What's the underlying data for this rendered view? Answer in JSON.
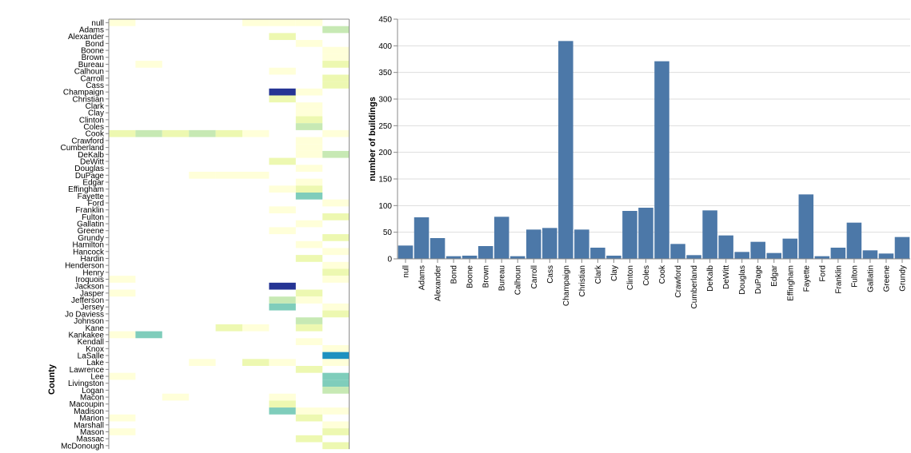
{
  "chart_data": [
    {
      "type": "heatmap",
      "ylabel": "County",
      "rows": [
        "null",
        "Adams",
        "Alexander",
        "Bond",
        "Boone",
        "Brown",
        "Bureau",
        "Calhoun",
        "Carroll",
        "Cass",
        "Champaign",
        "Christian",
        "Clark",
        "Clay",
        "Clinton",
        "Coles",
        "Cook",
        "Crawford",
        "Cumberland",
        "DeKalb",
        "DeWitt",
        "Douglas",
        "DuPage",
        "Edgar",
        "Effingham",
        "Fayette",
        "Ford",
        "Franklin",
        "Fulton",
        "Gallatin",
        "Greene",
        "Grundy",
        "Hamilton",
        "Hancock",
        "Hardin",
        "Henderson",
        "Henry",
        "Iroquois",
        "Jackson",
        "Jasper",
        "Jefferson",
        "Jersey",
        "Jo Daviess",
        "Johnson",
        "Kane",
        "Kankakee",
        "Kendall",
        "Knox",
        "LaSalle",
        "Lake",
        "Lawrence",
        "Lee",
        "Livingston",
        "Logan",
        "Macon",
        "Macoupin",
        "Madison",
        "Marion",
        "Marshall",
        "Mason",
        "Massac",
        "McDonough"
      ],
      "column_count": 9,
      "color_scale": [
        "#ffffd9",
        "#edf8b1",
        "#c7e9b4",
        "#7fcdbb",
        "#41b6c4",
        "#1d91c0",
        "#225ea8",
        "#253494"
      ],
      "cells": [
        {
          "row": "null",
          "col": 0,
          "level": 1
        },
        {
          "row": "null",
          "col": 5,
          "level": 1
        },
        {
          "row": "null",
          "col": 6,
          "level": 1
        },
        {
          "row": "null",
          "col": 7,
          "level": 1
        },
        {
          "row": "Adams",
          "col": 8,
          "level": 3
        },
        {
          "row": "Alexander",
          "col": 6,
          "level": 2
        },
        {
          "row": "Bond",
          "col": 7,
          "level": 1
        },
        {
          "row": "Boone",
          "col": 8,
          "level": 1
        },
        {
          "row": "Brown",
          "col": 8,
          "level": 1
        },
        {
          "row": "Bureau",
          "col": 1,
          "level": 1
        },
        {
          "row": "Bureau",
          "col": 8,
          "level": 2
        },
        {
          "row": "Calhoun",
          "col": 6,
          "level": 1
        },
        {
          "row": "Carroll",
          "col": 8,
          "level": 2
        },
        {
          "row": "Cass",
          "col": 8,
          "level": 2
        },
        {
          "row": "Champaign",
          "col": 6,
          "level": 8
        },
        {
          "row": "Champaign",
          "col": 7,
          "level": 1
        },
        {
          "row": "Christian",
          "col": 6,
          "level": 2
        },
        {
          "row": "Clark",
          "col": 7,
          "level": 1
        },
        {
          "row": "Clay",
          "col": 7,
          "level": 1
        },
        {
          "row": "Clinton",
          "col": 7,
          "level": 2
        },
        {
          "row": "Coles",
          "col": 7,
          "level": 3
        },
        {
          "row": "Cook",
          "col": 0,
          "level": 2
        },
        {
          "row": "Cook",
          "col": 1,
          "level": 3
        },
        {
          "row": "Cook",
          "col": 2,
          "level": 2
        },
        {
          "row": "Cook",
          "col": 3,
          "level": 3
        },
        {
          "row": "Cook",
          "col": 4,
          "level": 2
        },
        {
          "row": "Cook",
          "col": 5,
          "level": 1
        },
        {
          "row": "Cook",
          "col": 8,
          "level": 1
        },
        {
          "row": "Crawford",
          "col": 7,
          "level": 1
        },
        {
          "row": "Cumberland",
          "col": 7,
          "level": 1
        },
        {
          "row": "DeKalb",
          "col": 7,
          "level": 1
        },
        {
          "row": "DeKalb",
          "col": 8,
          "level": 3
        },
        {
          "row": "DeWitt",
          "col": 6,
          "level": 2
        },
        {
          "row": "Douglas",
          "col": 7,
          "level": 1
        },
        {
          "row": "DuPage",
          "col": 3,
          "level": 1
        },
        {
          "row": "DuPage",
          "col": 4,
          "level": 1
        },
        {
          "row": "DuPage",
          "col": 5,
          "level": 1
        },
        {
          "row": "Edgar",
          "col": 7,
          "level": 1
        },
        {
          "row": "Effingham",
          "col": 6,
          "level": 1
        },
        {
          "row": "Effingham",
          "col": 7,
          "level": 2
        },
        {
          "row": "Fayette",
          "col": 7,
          "level": 4
        },
        {
          "row": "Ford",
          "col": 8,
          "level": 1
        },
        {
          "row": "Franklin",
          "col": 6,
          "level": 1
        },
        {
          "row": "Fulton",
          "col": 8,
          "level": 2
        },
        {
          "row": "Gallatin",
          "col": 7,
          "level": 1
        },
        {
          "row": "Greene",
          "col": 6,
          "level": 1
        },
        {
          "row": "Grundy",
          "col": 8,
          "level": 2
        },
        {
          "row": "Hamilton",
          "col": 7,
          "level": 1
        },
        {
          "row": "Hancock",
          "col": 8,
          "level": 1
        },
        {
          "row": "Hardin",
          "col": 7,
          "level": 2
        },
        {
          "row": "Henderson",
          "col": 8,
          "level": 1
        },
        {
          "row": "Henry",
          "col": 8,
          "level": 2
        },
        {
          "row": "Iroquois",
          "col": 0,
          "level": 1
        },
        {
          "row": "Iroquois",
          "col": 8,
          "level": 1
        },
        {
          "row": "Jackson",
          "col": 6,
          "level": 8
        },
        {
          "row": "Jasper",
          "col": 0,
          "level": 1
        },
        {
          "row": "Jasper",
          "col": 7,
          "level": 2
        },
        {
          "row": "Jefferson",
          "col": 6,
          "level": 3
        },
        {
          "row": "Jefferson",
          "col": 7,
          "level": 1
        },
        {
          "row": "Jersey",
          "col": 6,
          "level": 4
        },
        {
          "row": "Jersey",
          "col": 8,
          "level": 1
        },
        {
          "row": "Jo Daviess",
          "col": 8,
          "level": 2
        },
        {
          "row": "Johnson",
          "col": 7,
          "level": 3
        },
        {
          "row": "Kane",
          "col": 4,
          "level": 2
        },
        {
          "row": "Kane",
          "col": 5,
          "level": 1
        },
        {
          "row": "Kane",
          "col": 7,
          "level": 2
        },
        {
          "row": "Kankakee",
          "col": 0,
          "level": 1
        },
        {
          "row": "Kankakee",
          "col": 1,
          "level": 4
        },
        {
          "row": "Kendall",
          "col": 7,
          "level": 1
        },
        {
          "row": "Knox",
          "col": 8,
          "level": 1
        },
        {
          "row": "LaSalle",
          "col": 8,
          "level": 6
        },
        {
          "row": "Lake",
          "col": 3,
          "level": 1
        },
        {
          "row": "Lake",
          "col": 5,
          "level": 2
        },
        {
          "row": "Lake",
          "col": 6,
          "level": 1
        },
        {
          "row": "Lake",
          "col": 8,
          "level": 1
        },
        {
          "row": "Lawrence",
          "col": 7,
          "level": 2
        },
        {
          "row": "Lee",
          "col": 0,
          "level": 1
        },
        {
          "row": "Lee",
          "col": 8,
          "level": 4
        },
        {
          "row": "Livingston",
          "col": 8,
          "level": 4
        },
        {
          "row": "Logan",
          "col": 8,
          "level": 3
        },
        {
          "row": "Macon",
          "col": 2,
          "level": 1
        },
        {
          "row": "Macon",
          "col": 6,
          "level": 1
        },
        {
          "row": "Macoupin",
          "col": 6,
          "level": 2
        },
        {
          "row": "Madison",
          "col": 6,
          "level": 4
        },
        {
          "row": "Madison",
          "col": 7,
          "level": 1
        },
        {
          "row": "Madison",
          "col": 8,
          "level": 1
        },
        {
          "row": "Marion",
          "col": 0,
          "level": 1
        },
        {
          "row": "Marion",
          "col": 7,
          "level": 2
        },
        {
          "row": "Marshall",
          "col": 8,
          "level": 1
        },
        {
          "row": "Mason",
          "col": 0,
          "level": 1
        },
        {
          "row": "Mason",
          "col": 8,
          "level": 2
        },
        {
          "row": "Massac",
          "col": 7,
          "level": 2
        },
        {
          "row": "McDonough",
          "col": 8,
          "level": 2
        }
      ]
    },
    {
      "type": "bar",
      "ylabel": "number of buildings",
      "xlabel": "",
      "ylim": [
        0,
        450
      ],
      "yticks": [
        0,
        50,
        100,
        150,
        200,
        250,
        300,
        350,
        400,
        450
      ],
      "bar_color": "#4c78a8",
      "categories": [
        "null",
        "Adams",
        "Alexander",
        "Bond",
        "Boone",
        "Brown",
        "Bureau",
        "Calhoun",
        "Carroll",
        "Cass",
        "Champaign",
        "Christian",
        "Clark",
        "Clay",
        "Clinton",
        "Coles",
        "Cook",
        "Crawford",
        "Cumberland",
        "DeKalb",
        "DeWitt",
        "Douglas",
        "DuPage",
        "Edgar",
        "Effingham",
        "Fayette",
        "Ford",
        "Franklin",
        "Fulton",
        "Gallatin",
        "Greene",
        "Grundy"
      ],
      "values": [
        25,
        78,
        39,
        5,
        6,
        24,
        79,
        5,
        55,
        58,
        409,
        55,
        21,
        6,
        90,
        96,
        371,
        28,
        7,
        91,
        44,
        13,
        32,
        11,
        38,
        121,
        5,
        21,
        68,
        16,
        10,
        41
      ]
    }
  ]
}
